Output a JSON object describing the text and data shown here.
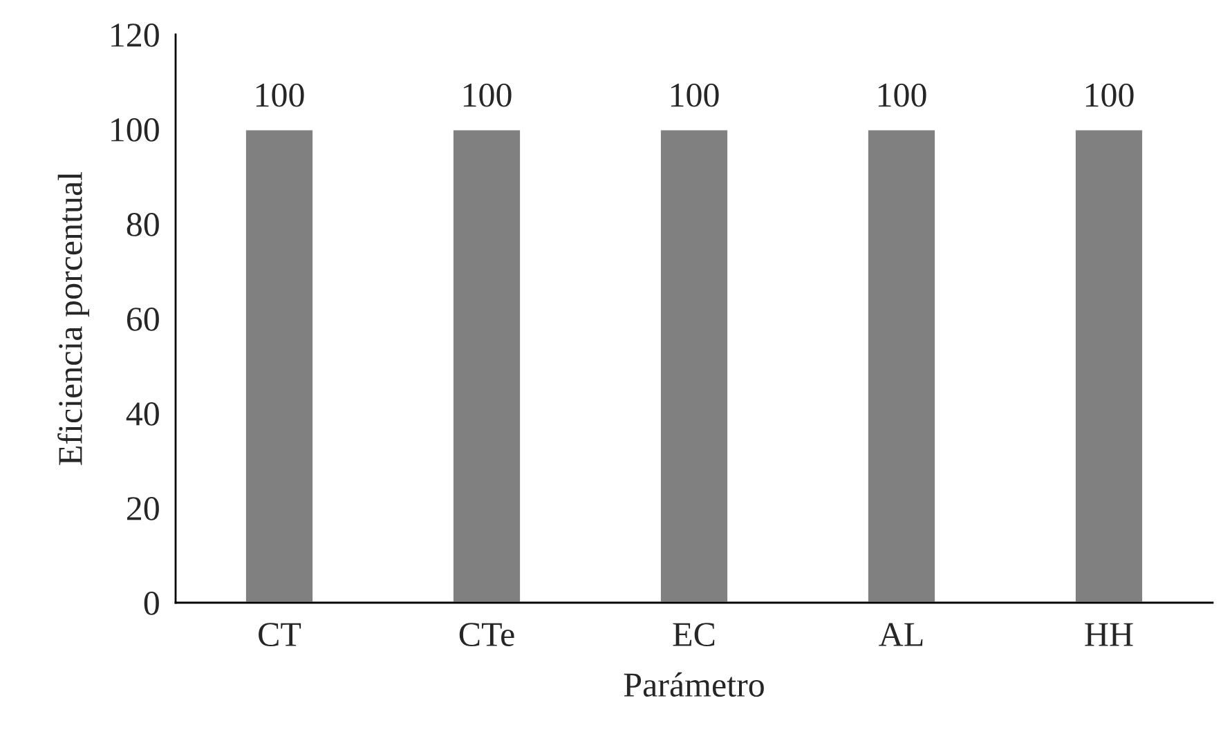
{
  "chart_data": {
    "type": "bar",
    "xlabel": "Parámetro",
    "ylabel": "Eficiencia porcentual",
    "categories": [
      "CT",
      "CTe",
      "EC",
      "AL",
      "HH"
    ],
    "values": [
      100,
      100,
      100,
      100,
      100
    ],
    "color": "#808080",
    "ylim": [
      0,
      120
    ],
    "yticks": [
      0,
      20,
      40,
      60,
      80,
      100,
      120
    ],
    "grid": false,
    "data_labels": true
  }
}
